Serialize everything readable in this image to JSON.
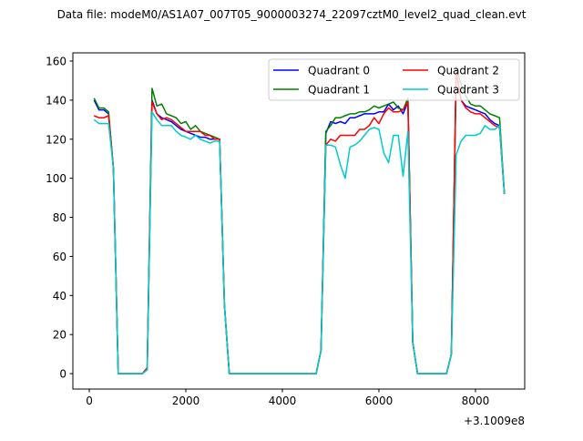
{
  "chart_data": {
    "type": "line",
    "title": "Data file: modeM0/AS1A07_007T05_9000003274_22097cztM0_level2_quad_clean.evt",
    "xlabel": "",
    "ylabel": "",
    "x_offset_label": "+3.1009e8",
    "xlim": [
      -340,
      9020
    ],
    "ylim": [
      -7.9,
      164.2
    ],
    "xticks": [
      0,
      2000,
      4000,
      6000,
      8000
    ],
    "xtick_labels": [
      "0",
      "2000",
      "4000",
      "6000",
      "8000"
    ],
    "yticks": [
      0,
      20,
      40,
      60,
      80,
      100,
      120,
      140,
      160
    ],
    "ytick_labels": [
      "0",
      "20",
      "40",
      "60",
      "80",
      "100",
      "120",
      "140",
      "160"
    ],
    "grid": false,
    "legend_placement": "top-right",
    "x_start": 100,
    "x_step": 100,
    "series": [
      {
        "name": "Quadrant 0",
        "color": "#0000ff",
        "values": [
          140,
          135,
          135,
          133,
          105,
          0,
          0,
          0,
          0,
          0,
          0,
          2,
          140,
          133,
          131,
          130,
          129,
          127,
          125,
          124,
          123,
          122,
          121,
          121,
          120,
          120,
          120,
          35,
          0,
          0,
          0,
          0,
          0,
          0,
          0,
          0,
          0,
          0,
          0,
          0,
          0,
          0,
          0,
          0,
          0,
          0,
          0,
          12,
          123,
          129,
          128,
          129,
          128,
          131,
          131,
          132,
          133,
          133,
          133,
          134,
          134,
          138,
          135,
          137,
          133,
          139,
          16,
          0,
          0,
          0,
          0,
          0,
          0,
          0,
          10,
          155,
          140,
          137,
          136,
          135,
          134,
          133,
          130,
          128,
          127,
          92
        ]
      },
      {
        "name": "Quadrant 1",
        "color": "#008000",
        "values": [
          141,
          136,
          136,
          134,
          105,
          0,
          0,
          0,
          0,
          0,
          0,
          3,
          146,
          137,
          138,
          133,
          132,
          131,
          128,
          129,
          125,
          127,
          124,
          123,
          122,
          121,
          120,
          35,
          0,
          0,
          0,
          0,
          0,
          0,
          0,
          0,
          0,
          0,
          0,
          0,
          0,
          0,
          0,
          0,
          0,
          0,
          0,
          12,
          124,
          127,
          131,
          131,
          132,
          133,
          133,
          134,
          134,
          135,
          137,
          136,
          137,
          138,
          139,
          136,
          135,
          141,
          16,
          0,
          0,
          0,
          0,
          0,
          0,
          0,
          10,
          157,
          148,
          142,
          138,
          137,
          137,
          135,
          133,
          132,
          131,
          92
        ]
      },
      {
        "name": "Quadrant 2",
        "color": "#ff0000",
        "values": [
          132,
          131,
          131,
          132,
          105,
          0,
          0,
          0,
          0,
          0,
          0,
          3,
          139,
          133,
          130,
          131,
          130,
          128,
          126,
          124,
          124,
          124,
          124,
          122,
          122,
          120,
          120,
          35,
          0,
          0,
          0,
          0,
          0,
          0,
          0,
          0,
          0,
          0,
          0,
          0,
          0,
          0,
          0,
          0,
          0,
          0,
          0,
          12,
          117,
          120,
          119,
          122,
          122,
          122,
          122,
          125,
          125,
          127,
          131,
          128,
          133,
          136,
          134,
          134,
          135,
          139,
          16,
          0,
          0,
          0,
          0,
          0,
          0,
          0,
          10,
          155,
          140,
          136,
          134,
          133,
          133,
          131,
          129,
          127,
          126,
          92
        ]
      },
      {
        "name": "Quadrant 3",
        "color": "#00cccc",
        "values": [
          130,
          128,
          128,
          128,
          105,
          0,
          0,
          0,
          0,
          0,
          0,
          2,
          134,
          130,
          127,
          127,
          127,
          124,
          122,
          121,
          120,
          122,
          120,
          119,
          118,
          119,
          119,
          35,
          0,
          0,
          0,
          0,
          0,
          0,
          0,
          0,
          0,
          0,
          0,
          0,
          0,
          0,
          0,
          0,
          0,
          0,
          0,
          12,
          117,
          117,
          116,
          107,
          100,
          116,
          117,
          119,
          122,
          125,
          126,
          125,
          113,
          108,
          122,
          122,
          101,
          124,
          16,
          0,
          0,
          0,
          0,
          0,
          0,
          0,
          10,
          112,
          119,
          122,
          122,
          122,
          123,
          127,
          125,
          125,
          127,
          92
        ]
      }
    ]
  }
}
